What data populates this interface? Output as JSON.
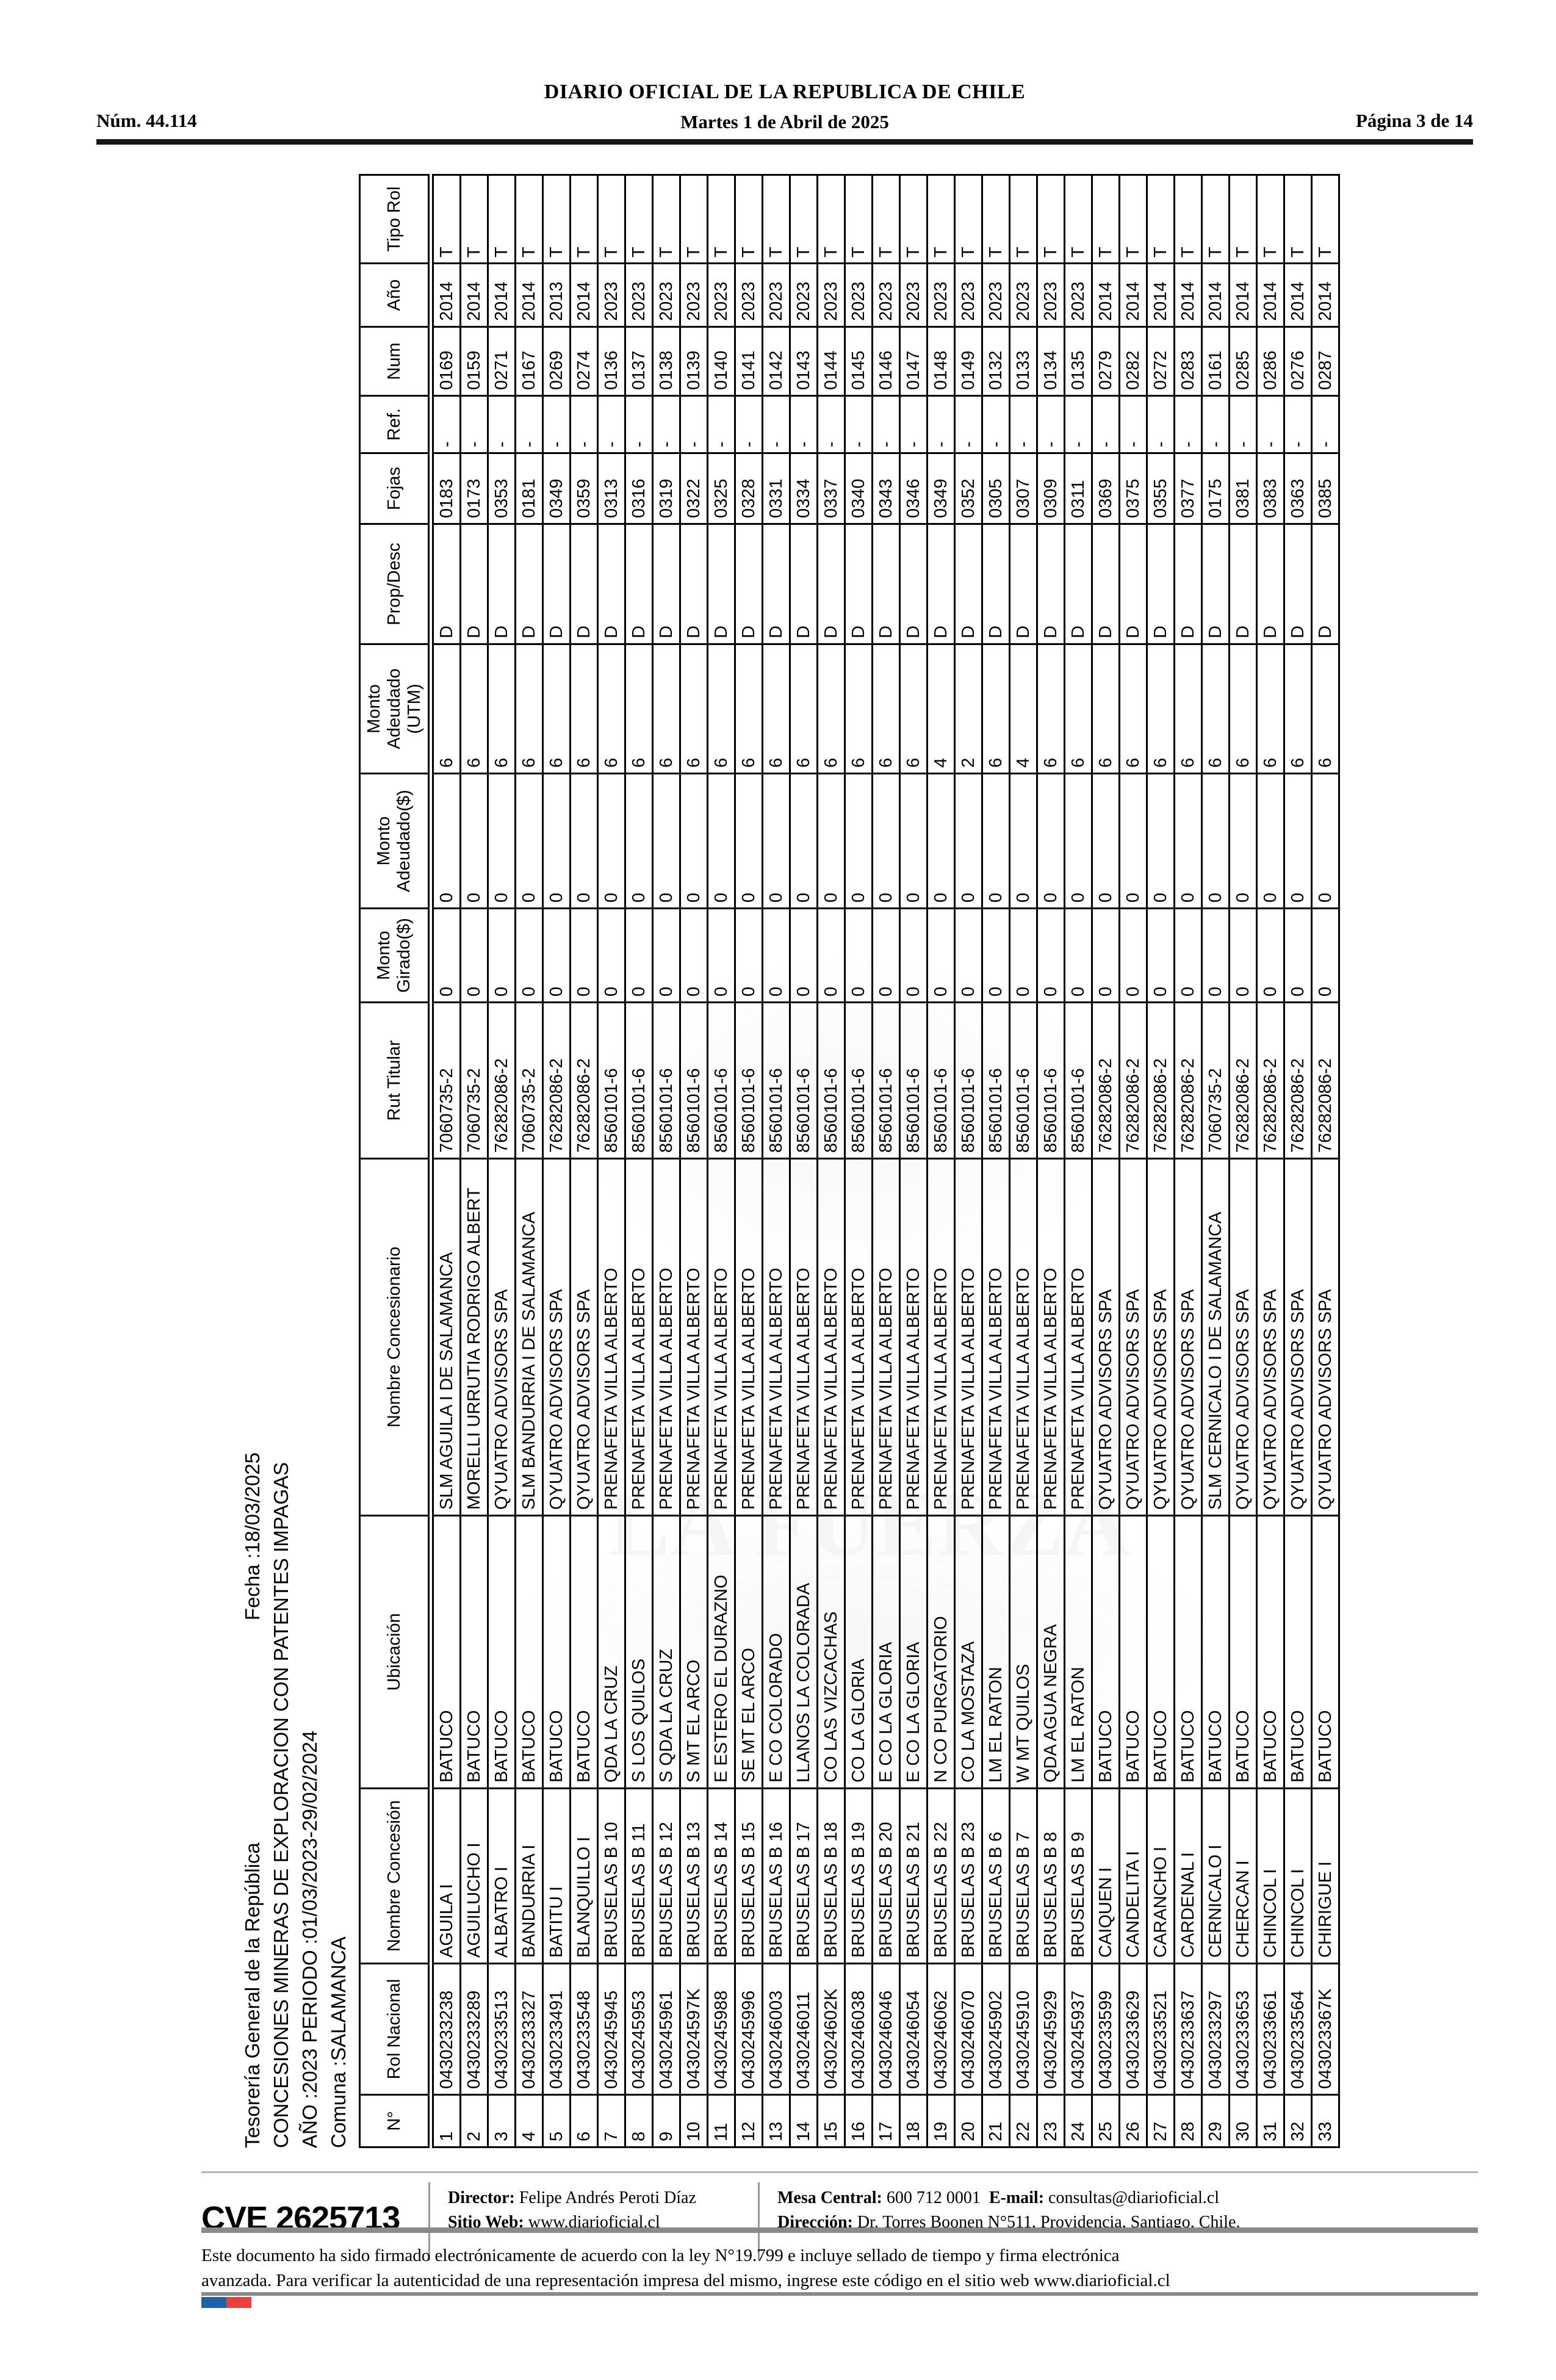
{
  "page_header": {
    "issue_number": "Núm. 44.114",
    "title": "DIARIO OFICIAL DE LA REPUBLICA DE CHILE",
    "date": "Martes 1 de Abril de 2025",
    "page_indicator": "Página 3 de 14"
  },
  "report": {
    "agency": "Tesorería General de la República",
    "date_label": "Fecha :18/03/2025",
    "title": "CONCESIONES MINERAS DE EXPLORACION CON PATENTES IMPAGAS",
    "period": "AÑO :2023 PERIODO :01/03/2023-29/02/2024",
    "comuna": "Comuna :SALAMANCA"
  },
  "table": {
    "columns": [
      "N°",
      "Rol Nacional",
      "Nombre Concesión",
      "Ubicación",
      "Nombre Concesionario",
      "Rut Titular",
      "Monto Girado($)",
      "Monto Adeudado($)",
      "Monto Adeudado (UTM)",
      "Prop/Desc",
      "Fojas",
      "Ref.",
      "Num",
      "Año",
      "Tipo Rol"
    ],
    "rows": [
      [
        "1",
        "0430233238",
        "AGUILA I",
        "BATUCO",
        "SLM AGUILA I DE SALAMANCA",
        "7060735-2",
        "0",
        "0",
        "6",
        "D",
        "0183",
        "-",
        "0169",
        "2014",
        "T"
      ],
      [
        "2",
        "0430233289",
        "AGUILUCHO I",
        "BATUCO",
        "MORELLI URRUTIA RODRIGO ALBERT",
        "7060735-2",
        "0",
        "0",
        "6",
        "D",
        "0173",
        "-",
        "0159",
        "2014",
        "T"
      ],
      [
        "3",
        "0430233513",
        "ALBATRO I",
        "BATUCO",
        "QYUATRO ADVISORS SPA",
        "76282086-2",
        "0",
        "0",
        "6",
        "D",
        "0353",
        "-",
        "0271",
        "2014",
        "T"
      ],
      [
        "4",
        "0430233327",
        "BANDURRIA I",
        "BATUCO",
        "SLM BANDURRIA I DE SALAMANCA",
        "7060735-2",
        "0",
        "0",
        "6",
        "D",
        "0181",
        "-",
        "0167",
        "2014",
        "T"
      ],
      [
        "5",
        "0430233491",
        "BATITU I",
        "BATUCO",
        "QYUATRO ADVISORS SPA",
        "76282086-2",
        "0",
        "0",
        "6",
        "D",
        "0349",
        "-",
        "0269",
        "2013",
        "T"
      ],
      [
        "6",
        "0430233548",
        "BLANQUILLO I",
        "BATUCO",
        "QYUATRO ADVISORS SPA",
        "76282086-2",
        "0",
        "0",
        "6",
        "D",
        "0359",
        "-",
        "0274",
        "2014",
        "T"
      ],
      [
        "7",
        "0430245945",
        "BRUSELAS B 10",
        "QDA LA CRUZ",
        "PRENAFETA VILLA ALBERTO",
        "8560101-6",
        "0",
        "0",
        "6",
        "D",
        "0313",
        "-",
        "0136",
        "2023",
        "T"
      ],
      [
        "8",
        "0430245953",
        "BRUSELAS B 11",
        "S LOS QUILOS",
        "PRENAFETA VILLA ALBERTO",
        "8560101-6",
        "0",
        "0",
        "6",
        "D",
        "0316",
        "-",
        "0137",
        "2023",
        "T"
      ],
      [
        "9",
        "0430245961",
        "BRUSELAS B 12",
        "S QDA LA CRUZ",
        "PRENAFETA VILLA ALBERTO",
        "8560101-6",
        "0",
        "0",
        "6",
        "D",
        "0319",
        "-",
        "0138",
        "2023",
        "T"
      ],
      [
        "10",
        "043024597K",
        "BRUSELAS B 13",
        "S MT EL ARCO",
        "PRENAFETA VILLA ALBERTO",
        "8560101-6",
        "0",
        "0",
        "6",
        "D",
        "0322",
        "-",
        "0139",
        "2023",
        "T"
      ],
      [
        "11",
        "0430245988",
        "BRUSELAS B 14",
        "E ESTERO EL DURAZNO",
        "PRENAFETA VILLA ALBERTO",
        "8560101-6",
        "0",
        "0",
        "6",
        "D",
        "0325",
        "-",
        "0140",
        "2023",
        "T"
      ],
      [
        "12",
        "0430245996",
        "BRUSELAS B 15",
        "SE MT EL ARCO",
        "PRENAFETA VILLA ALBERTO",
        "8560101-6",
        "0",
        "0",
        "6",
        "D",
        "0328",
        "-",
        "0141",
        "2023",
        "T"
      ],
      [
        "13",
        "0430246003",
        "BRUSELAS B 16",
        "E CO COLORADO",
        "PRENAFETA VILLA ALBERTO",
        "8560101-6",
        "0",
        "0",
        "6",
        "D",
        "0331",
        "-",
        "0142",
        "2023",
        "T"
      ],
      [
        "14",
        "0430246011",
        "BRUSELAS B 17",
        "LLANOS LA COLORADA",
        "PRENAFETA VILLA ALBERTO",
        "8560101-6",
        "0",
        "0",
        "6",
        "D",
        "0334",
        "-",
        "0143",
        "2023",
        "T"
      ],
      [
        "15",
        "043024602K",
        "BRUSELAS B 18",
        "CO LAS VIZCACHAS",
        "PRENAFETA VILLA ALBERTO",
        "8560101-6",
        "0",
        "0",
        "6",
        "D",
        "0337",
        "-",
        "0144",
        "2023",
        "T"
      ],
      [
        "16",
        "0430246038",
        "BRUSELAS B 19",
        "CO LA GLORIA",
        "PRENAFETA VILLA ALBERTO",
        "8560101-6",
        "0",
        "0",
        "6",
        "D",
        "0340",
        "-",
        "0145",
        "2023",
        "T"
      ],
      [
        "17",
        "0430246046",
        "BRUSELAS B 20",
        "E CO LA GLORIA",
        "PRENAFETA VILLA ALBERTO",
        "8560101-6",
        "0",
        "0",
        "6",
        "D",
        "0343",
        "-",
        "0146",
        "2023",
        "T"
      ],
      [
        "18",
        "0430246054",
        "BRUSELAS B 21",
        "E CO LA GLORIA",
        "PRENAFETA VILLA ALBERTO",
        "8560101-6",
        "0",
        "0",
        "6",
        "D",
        "0346",
        "-",
        "0147",
        "2023",
        "T"
      ],
      [
        "19",
        "0430246062",
        "BRUSELAS B 22",
        "N CO PURGATORIO",
        "PRENAFETA VILLA ALBERTO",
        "8560101-6",
        "0",
        "0",
        "4",
        "D",
        "0349",
        "-",
        "0148",
        "2023",
        "T"
      ],
      [
        "20",
        "0430246070",
        "BRUSELAS B 23",
        "CO LA MOSTAZA",
        "PRENAFETA VILLA ALBERTO",
        "8560101-6",
        "0",
        "0",
        "2",
        "D",
        "0352",
        "-",
        "0149",
        "2023",
        "T"
      ],
      [
        "21",
        "0430245902",
        "BRUSELAS B 6",
        "LM EL RATON",
        "PRENAFETA VILLA ALBERTO",
        "8560101-6",
        "0",
        "0",
        "6",
        "D",
        "0305",
        "-",
        "0132",
        "2023",
        "T"
      ],
      [
        "22",
        "0430245910",
        "BRUSELAS B 7",
        "W MT QUILOS",
        "PRENAFETA VILLA ALBERTO",
        "8560101-6",
        "0",
        "0",
        "4",
        "D",
        "0307",
        "-",
        "0133",
        "2023",
        "T"
      ],
      [
        "23",
        "0430245929",
        "BRUSELAS B 8",
        "QDA AGUA NEGRA",
        "PRENAFETA VILLA ALBERTO",
        "8560101-6",
        "0",
        "0",
        "6",
        "D",
        "0309",
        "-",
        "0134",
        "2023",
        "T"
      ],
      [
        "24",
        "0430245937",
        "BRUSELAS B 9",
        "LM EL RATON",
        "PRENAFETA VILLA ALBERTO",
        "8560101-6",
        "0",
        "0",
        "6",
        "D",
        "0311",
        "-",
        "0135",
        "2023",
        "T"
      ],
      [
        "25",
        "0430233599",
        "CAIQUEN I",
        "BATUCO",
        "QYUATRO ADVISORS SPA",
        "76282086-2",
        "0",
        "0",
        "6",
        "D",
        "0369",
        "-",
        "0279",
        "2014",
        "T"
      ],
      [
        "26",
        "0430233629",
        "CANDELITA I",
        "BATUCO",
        "QYUATRO ADVISORS SPA",
        "76282086-2",
        "0",
        "0",
        "6",
        "D",
        "0375",
        "-",
        "0282",
        "2014",
        "T"
      ],
      [
        "27",
        "0430233521",
        "CARANCHO I",
        "BATUCO",
        "QYUATRO ADVISORS SPA",
        "76282086-2",
        "0",
        "0",
        "6",
        "D",
        "0355",
        "-",
        "0272",
        "2014",
        "T"
      ],
      [
        "28",
        "0430233637",
        "CARDENAL I",
        "BATUCO",
        "QYUATRO ADVISORS SPA",
        "76282086-2",
        "0",
        "0",
        "6",
        "D",
        "0377",
        "-",
        "0283",
        "2014",
        "T"
      ],
      [
        "29",
        "0430233297",
        "CERNICALO I",
        "BATUCO",
        "SLM CERNICALO I DE SALAMANCA",
        "7060735-2",
        "0",
        "0",
        "6",
        "D",
        "0175",
        "-",
        "0161",
        "2014",
        "T"
      ],
      [
        "30",
        "0430233653",
        "CHERCAN I",
        "BATUCO",
        "QYUATRO ADVISORS SPA",
        "76282086-2",
        "0",
        "0",
        "6",
        "D",
        "0381",
        "-",
        "0285",
        "2014",
        "T"
      ],
      [
        "31",
        "0430233661",
        "CHINCOL I",
        "BATUCO",
        "QYUATRO ADVISORS SPA",
        "76282086-2",
        "0",
        "0",
        "6",
        "D",
        "0383",
        "-",
        "0286",
        "2014",
        "T"
      ],
      [
        "32",
        "0430233564",
        "CHINCOL I",
        "BATUCO",
        "QYUATRO ADVISORS SPA",
        "76282086-2",
        "0",
        "0",
        "6",
        "D",
        "0363",
        "-",
        "0276",
        "2014",
        "T"
      ],
      [
        "33",
        "043023367K",
        "CHIRIGUE I",
        "BATUCO",
        "QYUATRO ADVISORS SPA",
        "76282086-2",
        "0",
        "0",
        "6",
        "D",
        "0385",
        "-",
        "0287",
        "2014",
        "T"
      ]
    ]
  },
  "footer": {
    "cve_code": "CVE 2625713",
    "director_label": "Director:",
    "director_value": "Felipe Andrés Peroti Díaz",
    "sitio_label": "Sitio Web:",
    "sitio_value": "www.diarioficial.cl",
    "mesa_label": "Mesa Central:",
    "mesa_value": "600 712 0001",
    "email_label": "E-mail:",
    "email_value": "consultas@diarioficial.cl",
    "direccion_label": "Dirección:",
    "direccion_value": "Dr. Torres Boonen N°511, Providencia, Santiago, Chile."
  },
  "legal": {
    "line1": "Este documento ha sido firmado electrónicamente de acuerdo con la ley N°19.799 e incluye sellado de tiempo y firma electrónica",
    "line2": "avanzada. Para verificar la autenticidad de una representación impresa del mismo, ingrese este código en el sitio web www.diarioficial.cl"
  },
  "watermark_text": "POR LA RAZON O LA FUERZA",
  "colors": {
    "flag_blue": "#2261a9",
    "flag_red": "#e8403e",
    "rule_gray": "#8a8a8a"
  }
}
